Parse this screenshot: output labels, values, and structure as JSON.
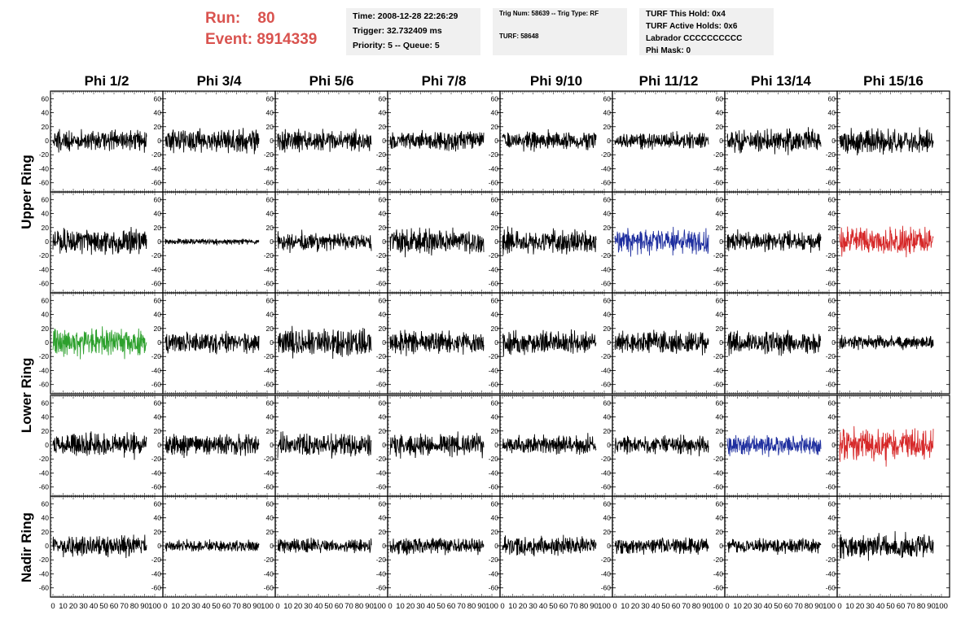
{
  "header": {
    "run_label": "Run:",
    "run_value": "80",
    "event_label": "Event:",
    "event_value": "8914339",
    "accent_color": "#d9534f"
  },
  "info_time": {
    "time": "Time: 2008-12-28 22:26:29",
    "trigger": "Trigger: 32.732409 ms",
    "priority": "Priority: 5 -- Queue: 5"
  },
  "info_trig": {
    "trig": "Trig Num: 58639 -- Trig Type: RF",
    "turf": "TURF: 58648"
  },
  "info_turf": {
    "this_hold": "TURF This Hold: 0x4",
    "active_holds": "TURF Active Holds: 0x6",
    "labrador": "Labrador CCCCCCCCCC",
    "phi_mask": "Phi Mask: 0"
  },
  "columns": [
    "Phi 1/2",
    "Phi 3/4",
    "Phi 5/6",
    "Phi 7/8",
    "Phi 9/10",
    "Phi 11/12",
    "Phi 13/14",
    "Phi 15/16"
  ],
  "ring_labels": [
    "Upper Ring",
    "Lower Ring",
    "Nadir Ring"
  ],
  "y_ticks": [
    "60",
    "40",
    "20",
    "0",
    "-20",
    "-40",
    "-60"
  ],
  "x_ticks": [
    "0",
    "10",
    "20",
    "30",
    "40",
    "50",
    "60",
    "70",
    "80",
    "90",
    "100"
  ],
  "chart_data": {
    "type": "line",
    "xlim": [
      0,
      100
    ],
    "ylim": [
      -65,
      65
    ],
    "rows": 5,
    "cols": 8,
    "trace_colors": {
      "default": "#000000",
      "green": "#2ca02c",
      "blue": "#1f2f9f",
      "red": "#d62728"
    },
    "highlighted_panels": [
      {
        "row": 1,
        "col": 5,
        "color": "blue",
        "amplitude": 22
      },
      {
        "row": 1,
        "col": 7,
        "color": "red",
        "amplitude": 24
      },
      {
        "row": 2,
        "col": 0,
        "color": "green",
        "amplitude": 26
      },
      {
        "row": 3,
        "col": 6,
        "color": "blue",
        "amplitude": 18
      },
      {
        "row": 3,
        "col": 7,
        "color": "red",
        "amplitude": 30
      }
    ],
    "panel_amplitudes": [
      [
        18,
        20,
        18,
        16,
        16,
        14,
        20,
        22
      ],
      [
        22,
        5,
        16,
        22,
        20,
        22,
        18,
        24
      ],
      [
        26,
        18,
        24,
        20,
        20,
        20,
        20,
        12
      ],
      [
        20,
        18,
        20,
        20,
        16,
        16,
        18,
        30
      ],
      [
        18,
        10,
        12,
        14,
        16,
        14,
        12,
        22
      ]
    ]
  }
}
